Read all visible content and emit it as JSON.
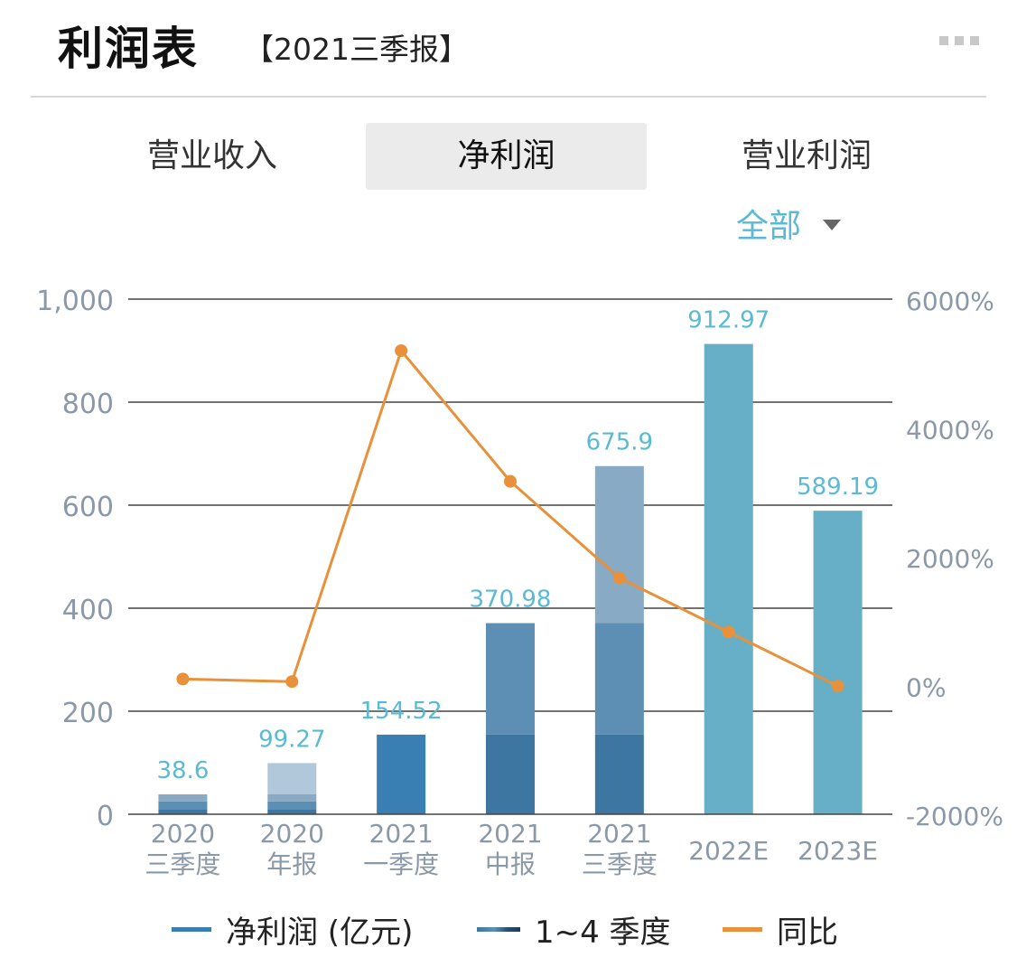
{
  "header": {
    "title": "利润表",
    "subtitle": "【2021三季报】",
    "more_icon": "more-icon"
  },
  "tabs": [
    {
      "label": "营业收入",
      "active": false
    },
    {
      "label": "净利润",
      "active": true
    },
    {
      "label": "营业利润",
      "active": false
    }
  ],
  "filter": {
    "label": "全部",
    "icon": "caret-down-icon"
  },
  "colors": {
    "grid": "#444444",
    "axis_text": "#8a98a8",
    "label": "#5bbad3",
    "line": "#e8903a",
    "net_profit": "#3a7fb4",
    "q1": "#3d76a1",
    "q2": "#5c8fb3",
    "q3": "#88aac4",
    "q4": "#b0c8da",
    "estimate": "#67afc7"
  },
  "chart_data": {
    "type": "bar",
    "categories": [
      [
        "2020",
        "三季度"
      ],
      [
        "2020",
        "年报"
      ],
      [
        "2021",
        "一季度"
      ],
      [
        "2021",
        "中报"
      ],
      [
        "2021",
        "三季度"
      ],
      [
        "2022E"
      ],
      [
        "2023E"
      ]
    ],
    "bar_labels": [
      "38.6",
      "99.27",
      "154.52",
      "370.98",
      "675.9",
      "912.97",
      "589.19"
    ],
    "totals": [
      38.6,
      99.27,
      154.52,
      370.98,
      675.9,
      912.97,
      589.19
    ],
    "series": [
      {
        "name": "净利润 (亿元)",
        "values": [
          null,
          null,
          154.52,
          null,
          null,
          912.97,
          589.19
        ]
      },
      {
        "name": "1~4 季度",
        "stacks": [
          [
            10,
            15,
            13.6
          ],
          [
            10,
            15,
            13.6,
            60.67
          ],
          null,
          [
            154.52,
            216.46
          ],
          [
            154.52,
            216.46,
            304.92
          ],
          null,
          null
        ]
      },
      {
        "name": "同比",
        "axis": "right",
        "values": [
          100,
          60,
          5200,
          3170,
          1670,
          830,
          -10
        ]
      }
    ],
    "ylim": [
      0,
      1000
    ],
    "yticks": [
      "0",
      "200",
      "400",
      "600",
      "800",
      "1,000"
    ],
    "ylim_right": [
      -2000,
      6000
    ],
    "yticks_right": [
      "-2000%",
      "0%",
      "2000%",
      "4000%",
      "6000%"
    ],
    "grid": true,
    "legend_position": "bottom"
  },
  "legend": [
    {
      "label": "净利润 (亿元)",
      "swatch": "net_profit"
    },
    {
      "label": "1~4 季度",
      "swatch": "quarters"
    },
    {
      "label": "同比",
      "swatch": "line"
    }
  ]
}
